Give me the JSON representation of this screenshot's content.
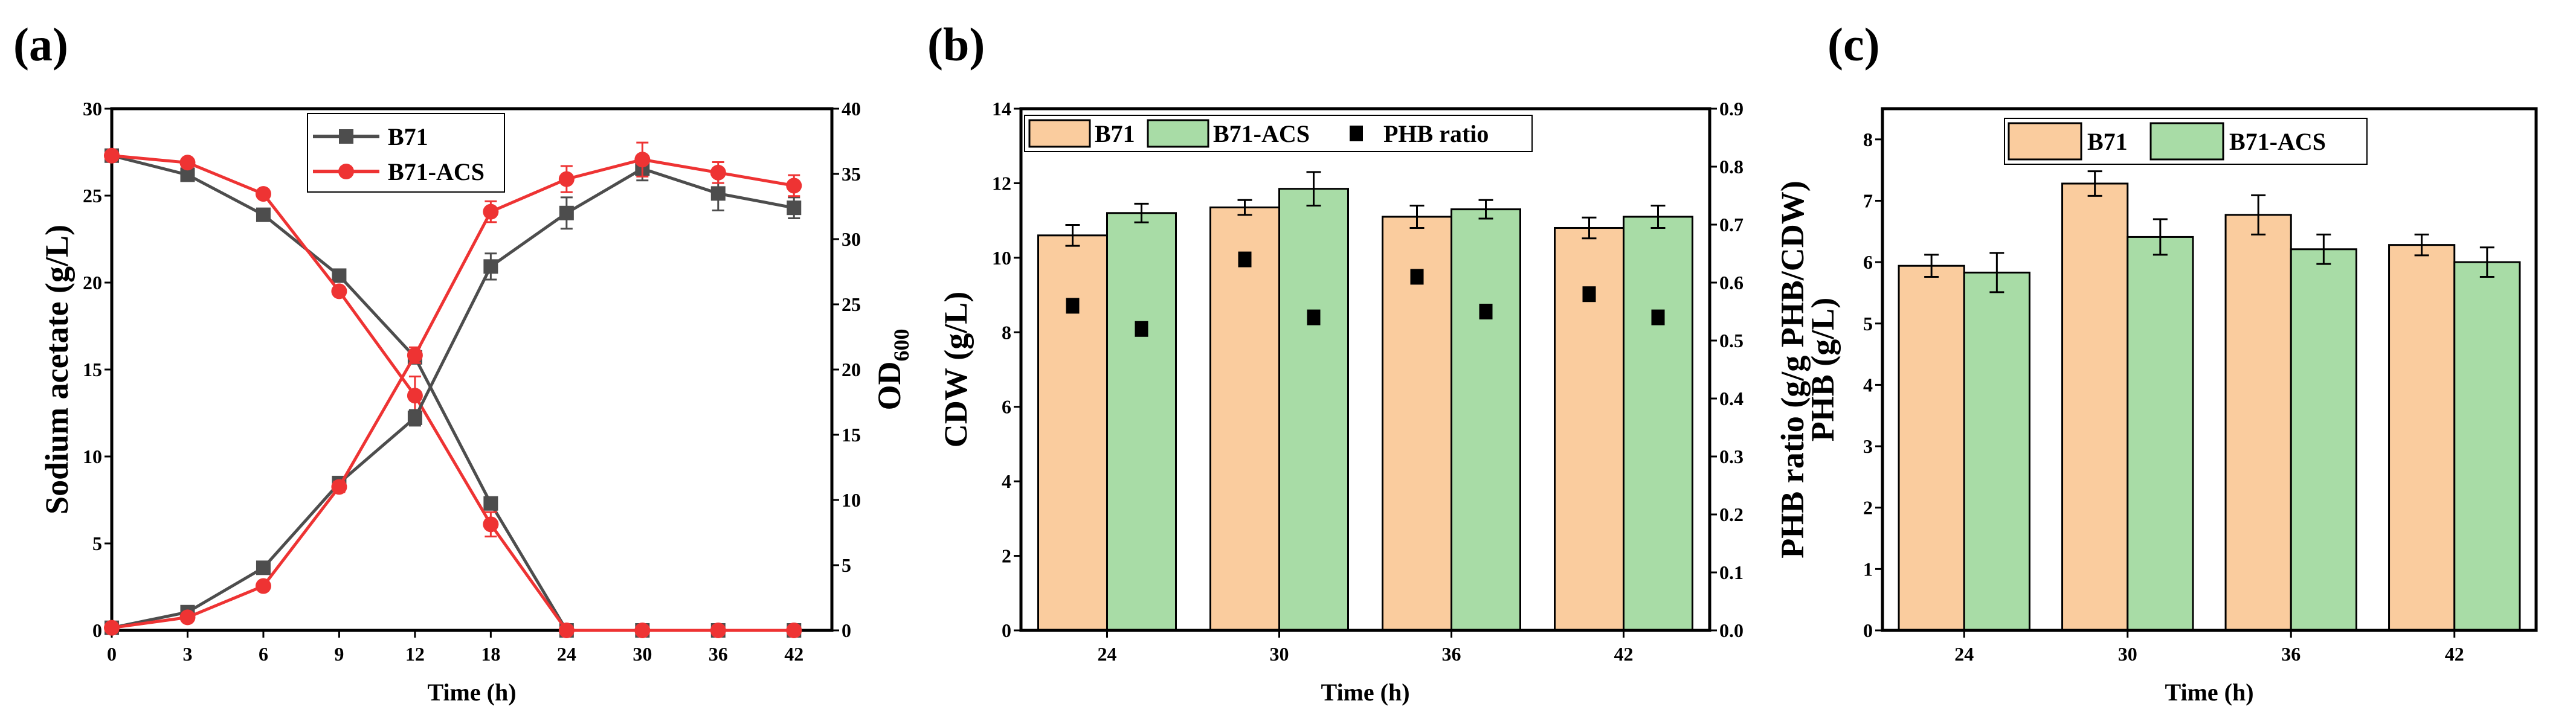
{
  "colors": {
    "b71_line": "#4d4d4d",
    "acs_line": "#ee3333",
    "b71_bar": "#facc9e",
    "acs_bar": "#a8dca6",
    "ratio": "#000000"
  },
  "chart_data": [
    {
      "panel_label": "(a)",
      "type": "line",
      "xlabel": "Time (h)",
      "ylabel": "Sodium acetate (g/L)",
      "ylabel_right": "OD",
      "ylabel_right_sub": "600",
      "categories": [
        "0",
        "3",
        "6",
        "9",
        "12",
        "18",
        "24",
        "30",
        "36",
        "42"
      ],
      "ylim": [
        0,
        30
      ],
      "yticks": [
        0,
        5,
        10,
        15,
        20,
        25,
        30
      ],
      "ylim_right": [
        0,
        40
      ],
      "yticks_right": [
        0,
        5,
        10,
        15,
        20,
        25,
        30,
        35,
        40
      ],
      "legend": [
        "B71",
        "B71-ACS"
      ],
      "legend_position": "top-center",
      "series": [
        {
          "name": "B71",
          "quantity": "acetate",
          "axis": "left",
          "marker": "square",
          "values": [
            27.3,
            26.2,
            23.9,
            20.4,
            15.7,
            7.3,
            0,
            0,
            0,
            0
          ],
          "errors": [
            0.2,
            0.2,
            0.2,
            0.2,
            0.2,
            0.3,
            0,
            0,
            0,
            0
          ]
        },
        {
          "name": "B71-ACS",
          "quantity": "acetate",
          "axis": "left",
          "marker": "circle",
          "values": [
            27.3,
            26.9,
            25.1,
            19.5,
            13.5,
            6.1,
            0,
            0,
            0,
            0
          ],
          "errors": [
            0.2,
            0.2,
            0.2,
            0.2,
            1.1,
            0.7,
            0,
            0,
            0,
            0
          ]
        },
        {
          "name": "B71",
          "quantity": "OD600",
          "axis": "right",
          "marker": "square",
          "values": [
            0.2,
            1.4,
            4.8,
            11.3,
            16.3,
            27.9,
            32.0,
            35.4,
            33.5,
            32.4
          ],
          "errors": [
            0.1,
            0.2,
            0.2,
            0.4,
            0.6,
            1.0,
            1.2,
            0.9,
            1.3,
            0.8
          ]
        },
        {
          "name": "B71-ACS",
          "quantity": "OD600",
          "axis": "right",
          "marker": "circle",
          "values": [
            0.2,
            1.0,
            3.4,
            11.0,
            21.1,
            32.1,
            34.6,
            36.1,
            35.1,
            34.1
          ],
          "errors": [
            0.1,
            0.2,
            0.2,
            0.4,
            0.6,
            0.8,
            1.0,
            1.3,
            0.8,
            0.8
          ]
        }
      ]
    },
    {
      "panel_label": "(b)",
      "type": "bar",
      "xlabel": "Time (h)",
      "ylabel": "CDW (g/L)",
      "ylabel_right": "PHB ratio (g/g PHB/CDW)",
      "categories": [
        "24",
        "30",
        "36",
        "42"
      ],
      "ylim": [
        0,
        14
      ],
      "yticks": [
        0,
        2,
        4,
        6,
        8,
        10,
        12,
        14
      ],
      "ylim_right": [
        0,
        0.9
      ],
      "yticks_right": [
        "0.0",
        "0.1",
        "0.2",
        "0.3",
        "0.4",
        "0.5",
        "0.6",
        "0.7",
        "0.8",
        "0.9"
      ],
      "legend": [
        "B71",
        "B71-ACS",
        "PHB ratio"
      ],
      "legend_position": "top-left",
      "series": [
        {
          "name": "B71",
          "values": [
            10.6,
            11.35,
            11.1,
            10.8
          ],
          "errors": [
            0.28,
            0.2,
            0.3,
            0.28
          ]
        },
        {
          "name": "B71-ACS",
          "values": [
            11.2,
            11.85,
            11.3,
            11.1
          ],
          "errors": [
            0.25,
            0.45,
            0.25,
            0.3
          ]
        }
      ],
      "ratio_series": {
        "name": "PHB ratio",
        "B71": [
          0.56,
          0.64,
          0.61,
          0.58
        ],
        "B71-ACS": [
          0.52,
          0.54,
          0.55,
          0.54
        ]
      }
    },
    {
      "panel_label": "(c)",
      "type": "bar",
      "xlabel": "Time (h)",
      "ylabel": "PHB (g/L)",
      "categories": [
        "24",
        "30",
        "36",
        "42"
      ],
      "ylim": [
        0,
        8.5
      ],
      "yticks": [
        0,
        1,
        2,
        3,
        4,
        5,
        6,
        7,
        8
      ],
      "legend": [
        "B71",
        "B71-ACS"
      ],
      "legend_position": "top-center",
      "series": [
        {
          "name": "B71",
          "values": [
            5.94,
            7.28,
            6.77,
            6.28
          ],
          "errors": [
            0.18,
            0.2,
            0.32,
            0.17
          ]
        },
        {
          "name": "B71-ACS",
          "values": [
            5.83,
            6.41,
            6.21,
            6.0
          ],
          "errors": [
            0.32,
            0.29,
            0.24,
            0.24
          ]
        }
      ]
    }
  ]
}
